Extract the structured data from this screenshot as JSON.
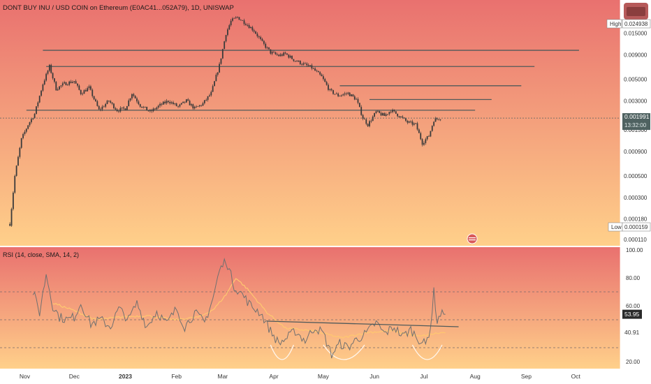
{
  "header": {
    "title": "DONT BUY INU / USD COIN on Ethereum (E0AC41...052A79), 1D, UNISWAP"
  },
  "price_pane": {
    "high_label": "High",
    "high_value": "0.024938",
    "low_label": "Low",
    "low_value": "0.000159",
    "last_price": "0.001991",
    "countdown": "13:32:00"
  },
  "rsi_pane": {
    "title": "RSI (14, close, SMA, 14, 2)",
    "rsi_value": "53.95",
    "ma_value": "40.91"
  },
  "colors": {
    "bg_top": "#e9716f",
    "bg_bottom": "#ffd08a",
    "candle": "#3a3a3a",
    "trendline": "#505a5a",
    "rsi_line": "#707070",
    "rsi_ma": "#ffc870",
    "rsi_mark": "#c84c6c",
    "badge_price": "#4f6261",
    "badge_dark": "#2a2a2a"
  },
  "chart_data": [
    {
      "type": "candlestick",
      "scale": "log",
      "y_ticks": [
        "0.015000",
        "0.009000",
        "0.005000",
        "0.003000",
        "0.001500",
        "0.000900",
        "0.000500",
        "0.000300",
        "0.000180",
        "0.000110"
      ],
      "y_tick_values": [
        0.015,
        0.009,
        0.005,
        0.003,
        0.0015,
        0.0009,
        0.0005,
        0.0003,
        0.00018,
        0.00011
      ],
      "ylim": [
        0.000105,
        0.03
      ],
      "x_ticks": [
        "Nov",
        "Dec",
        "2023",
        "Feb",
        "Mar",
        "Apr",
        "May",
        "Jun",
        "Jul",
        "Aug",
        "Sep",
        "Oct"
      ],
      "x_tick_dates": [
        "2022-11-01",
        "2022-12-01",
        "2023-01-01",
        "2023-02-01",
        "2023-03-01",
        "2023-04-01",
        "2023-05-01",
        "2023-06-01",
        "2023-07-01",
        "2023-08-01",
        "2023-09-01",
        "2023-10-01"
      ],
      "xlim": [
        "2022-10-17",
        "2023-10-28"
      ],
      "anchors": [
        [
          "2022-10-23",
          0.00016
        ],
        [
          "2022-10-26",
          0.0005
        ],
        [
          "2022-10-30",
          0.0012
        ],
        [
          "2022-11-03",
          0.0017
        ],
        [
          "2022-11-07",
          0.0022
        ],
        [
          "2022-11-12",
          0.0045
        ],
        [
          "2022-11-16",
          0.0068
        ],
        [
          "2022-11-20",
          0.004
        ],
        [
          "2022-11-25",
          0.0045
        ],
        [
          "2022-12-01",
          0.0048
        ],
        [
          "2022-12-05",
          0.0036
        ],
        [
          "2022-12-10",
          0.0041
        ],
        [
          "2022-12-16",
          0.0024
        ],
        [
          "2022-12-22",
          0.003
        ],
        [
          "2022-12-27",
          0.0024
        ],
        [
          "2023-01-01",
          0.0025
        ],
        [
          "2023-01-05",
          0.0036
        ],
        [
          "2023-01-10",
          0.0027
        ],
        [
          "2023-01-16",
          0.0023
        ],
        [
          "2023-01-22",
          0.0027
        ],
        [
          "2023-01-27",
          0.003
        ],
        [
          "2023-02-02",
          0.0026
        ],
        [
          "2023-02-07",
          0.003
        ],
        [
          "2023-02-12",
          0.0025
        ],
        [
          "2023-02-17",
          0.0028
        ],
        [
          "2023-02-22",
          0.0036
        ],
        [
          "2023-02-27",
          0.007
        ],
        [
          "2023-03-03",
          0.015
        ],
        [
          "2023-03-06",
          0.02
        ],
        [
          "2023-03-10",
          0.022
        ],
        [
          "2023-03-15",
          0.019
        ],
        [
          "2023-03-20",
          0.016
        ],
        [
          "2023-03-25",
          0.012
        ],
        [
          "2023-03-30",
          0.0095
        ],
        [
          "2023-04-04",
          0.0088
        ],
        [
          "2023-04-08",
          0.0092
        ],
        [
          "2023-04-13",
          0.008
        ],
        [
          "2023-04-18",
          0.0073
        ],
        [
          "2023-04-24",
          0.0066
        ],
        [
          "2023-04-30",
          0.0053
        ],
        [
          "2023-05-05",
          0.0038
        ],
        [
          "2023-05-10",
          0.0034
        ],
        [
          "2023-05-16",
          0.0036
        ],
        [
          "2023-05-21",
          0.0031
        ],
        [
          "2023-05-25",
          0.002
        ],
        [
          "2023-05-28",
          0.0017
        ],
        [
          "2023-06-02",
          0.0023
        ],
        [
          "2023-06-07",
          0.0021
        ],
        [
          "2023-06-11",
          0.0024
        ],
        [
          "2023-06-16",
          0.0021
        ],
        [
          "2023-06-21",
          0.0018
        ],
        [
          "2023-06-26",
          0.0017
        ],
        [
          "2023-06-30",
          0.0011
        ],
        [
          "2023-07-04",
          0.0013
        ],
        [
          "2023-07-07",
          0.0019
        ],
        [
          "2023-07-11",
          0.002
        ]
      ],
      "horizontal_levels": [
        {
          "from": "2022-11-12",
          "to": "2023-10-03",
          "value": 0.01
        },
        {
          "from": "2022-11-14",
          "to": "2023-09-06",
          "value": 0.0068
        },
        {
          "from": "2023-05-11",
          "to": "2023-08-29",
          "value": 0.0043
        },
        {
          "from": "2023-05-29",
          "to": "2023-08-11",
          "value": 0.0031
        },
        {
          "from": "2022-11-02",
          "to": "2023-08-01",
          "value": 0.0024
        }
      ]
    },
    {
      "type": "line",
      "title": "RSI (14, close, SMA, 14, 2)",
      "y_ticks": [
        "100.00",
        "80.00",
        "60.00",
        "20.00"
      ],
      "y_tick_values": [
        100,
        80,
        60,
        20
      ],
      "ylim": [
        15,
        100
      ],
      "dashed_levels": [
        70,
        50,
        30
      ],
      "rsi_anchors": [
        [
          "2022-11-06",
          70
        ],
        [
          "2022-11-10",
          55
        ],
        [
          "2022-11-14",
          83
        ],
        [
          "2022-11-18",
          60
        ],
        [
          "2022-11-22",
          52
        ],
        [
          "2022-11-27",
          50
        ],
        [
          "2022-12-01",
          52
        ],
        [
          "2022-12-05",
          62
        ],
        [
          "2022-12-11",
          47
        ],
        [
          "2022-12-17",
          50
        ],
        [
          "2022-12-23",
          45
        ],
        [
          "2022-12-28",
          58
        ],
        [
          "2023-01-03",
          50
        ],
        [
          "2023-01-08",
          62
        ],
        [
          "2023-01-14",
          45
        ],
        [
          "2023-01-20",
          56
        ],
        [
          "2023-01-26",
          47
        ],
        [
          "2023-02-01",
          58
        ],
        [
          "2023-02-06",
          45
        ],
        [
          "2023-02-12",
          55
        ],
        [
          "2023-02-18",
          48
        ],
        [
          "2023-02-23",
          65
        ],
        [
          "2023-02-27",
          85
        ],
        [
          "2023-03-03",
          93
        ],
        [
          "2023-03-08",
          74
        ],
        [
          "2023-03-13",
          68
        ],
        [
          "2023-03-18",
          60
        ],
        [
          "2023-03-24",
          55
        ],
        [
          "2023-03-30",
          42
        ],
        [
          "2023-04-04",
          33
        ],
        [
          "2023-04-09",
          37
        ],
        [
          "2023-04-14",
          42
        ],
        [
          "2023-04-20",
          35
        ],
        [
          "2023-04-26",
          45
        ],
        [
          "2023-05-01",
          40
        ],
        [
          "2023-05-06",
          25
        ],
        [
          "2023-05-11",
          33
        ],
        [
          "2023-05-16",
          30
        ],
        [
          "2023-05-21",
          36
        ],
        [
          "2023-05-27",
          40
        ],
        [
          "2023-06-02",
          48
        ],
        [
          "2023-06-07",
          40
        ],
        [
          "2023-06-13",
          45
        ],
        [
          "2023-06-18",
          38
        ],
        [
          "2023-06-23",
          43
        ],
        [
          "2023-06-28",
          36
        ],
        [
          "2023-07-02",
          32
        ],
        [
          "2023-07-05",
          45
        ],
        [
          "2023-07-07",
          70
        ],
        [
          "2023-07-09",
          49
        ],
        [
          "2023-07-11",
          54
        ],
        [
          "2023-07-14",
          53.95
        ]
      ],
      "ma_anchors": [
        [
          "2022-11-18",
          62
        ],
        [
          "2022-11-30",
          57
        ],
        [
          "2022-12-14",
          50
        ],
        [
          "2022-12-30",
          52
        ],
        [
          "2023-01-14",
          53
        ],
        [
          "2023-01-30",
          50
        ],
        [
          "2023-02-15",
          52
        ],
        [
          "2023-02-24",
          58
        ],
        [
          "2023-03-03",
          68
        ],
        [
          "2023-03-09",
          80
        ],
        [
          "2023-03-16",
          72
        ],
        [
          "2023-03-28",
          55
        ],
        [
          "2023-04-08",
          44
        ],
        [
          "2023-04-25",
          42
        ],
        [
          "2023-05-12",
          37
        ],
        [
          "2023-05-28",
          41
        ],
        [
          "2023-06-12",
          42
        ],
        [
          "2023-06-28",
          38
        ],
        [
          "2023-07-07",
          40
        ],
        [
          "2023-07-14",
          40.91
        ]
      ],
      "trendline": [
        [
          "2023-03-28",
          49
        ],
        [
          "2023-07-22",
          45
        ]
      ],
      "divergence_arcs": [
        [
          "2023-03-30",
          "2023-04-13"
        ],
        [
          "2023-05-01",
          "2023-05-26"
        ],
        [
          "2023-06-24",
          "2023-07-12"
        ]
      ]
    }
  ]
}
